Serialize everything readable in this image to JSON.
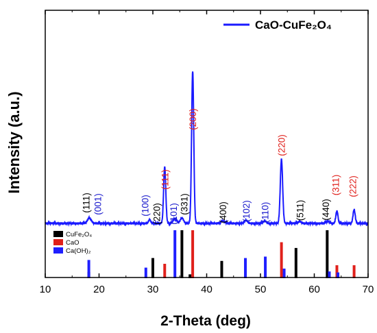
{
  "chart_data": {
    "type": "line",
    "xlabel": "2-Theta (deg)",
    "ylabel": "Intensity (a.u.)",
    "xlim": [
      10,
      70
    ],
    "xticks": [
      10,
      20,
      30,
      40,
      50,
      60,
      70
    ],
    "xtick_labels": [
      "10",
      "20",
      "30",
      "40",
      "50",
      "60",
      "70"
    ],
    "yticks_shown": false,
    "grid": false,
    "series": [
      {
        "name": "CaO-CuFe₂O₄",
        "color": "#1a1aff",
        "baseline_rel": 0.02,
        "peaks": [
          {
            "x": 18.2,
            "h": 0.035,
            "w": 0.35
          },
          {
            "x": 29.4,
            "h": 0.025,
            "w": 0.2
          },
          {
            "x": 32.2,
            "h": 0.37,
            "w": 0.2
          },
          {
            "x": 34.1,
            "h": 0.03,
            "w": 0.35
          },
          {
            "x": 35.4,
            "h": 0.035,
            "w": 0.3
          },
          {
            "x": 37.4,
            "h": 1.0,
            "w": 0.2
          },
          {
            "x": 43.0,
            "h": 0.015,
            "w": 0.4
          },
          {
            "x": 47.3,
            "h": 0.02,
            "w": 0.3
          },
          {
            "x": 50.8,
            "h": 0.015,
            "w": 0.3
          },
          {
            "x": 53.9,
            "h": 0.42,
            "w": 0.22
          },
          {
            "x": 57.3,
            "h": 0.012,
            "w": 0.3
          },
          {
            "x": 62.5,
            "h": 0.015,
            "w": 0.3
          },
          {
            "x": 64.2,
            "h": 0.08,
            "w": 0.2
          },
          {
            "x": 67.4,
            "h": 0.09,
            "w": 0.2
          }
        ]
      }
    ],
    "reference_patterns": [
      {
        "name": "CuFe₂O₄",
        "color": "#000000",
        "lines": [
          {
            "x": 18.1,
            "rel": 0.13
          },
          {
            "x": 30.0,
            "rel": 0.42
          },
          {
            "x": 35.4,
            "rel": 1.0
          },
          {
            "x": 36.9,
            "rel": 0.08
          },
          {
            "x": 42.8,
            "rel": 0.36
          },
          {
            "x": 56.6,
            "rel": 0.63
          },
          {
            "x": 62.4,
            "rel": 1.0
          }
        ]
      },
      {
        "name": "CaO",
        "color": "#e0201b",
        "lines": [
          {
            "x": 32.2,
            "rel": 0.3
          },
          {
            "x": 37.4,
            "rel": 1.0
          },
          {
            "x": 53.9,
            "rel": 0.75
          },
          {
            "x": 64.2,
            "rel": 0.27
          },
          {
            "x": 67.4,
            "rel": 0.27
          }
        ]
      },
      {
        "name": "Ca(OH)₂",
        "color": "#1f1fff",
        "lines": [
          {
            "x": 18.1,
            "rel": 0.38
          },
          {
            "x": 28.7,
            "rel": 0.22
          },
          {
            "x": 34.1,
            "rel": 1.0
          },
          {
            "x": 47.2,
            "rel": 0.42
          },
          {
            "x": 50.9,
            "rel": 0.45
          },
          {
            "x": 54.4,
            "rel": 0.2
          },
          {
            "x": 62.8,
            "rel": 0.14
          },
          {
            "x": 64.4,
            "rel": 0.12
          }
        ]
      }
    ],
    "peak_labels": [
      {
        "text": "(111)",
        "x": 18.2,
        "color": "#000000",
        "row": 0
      },
      {
        "text": "(001)",
        "x": 18.2,
        "color": "#1a1acc",
        "row": 1
      },
      {
        "text": "(100)",
        "x": 29.4,
        "color": "#1a1acc",
        "row": 0
      },
      {
        "text": "(220)",
        "x": 29.4,
        "color": "#000000",
        "row": 1
      },
      {
        "text": "(111)",
        "x": 32.2,
        "color": "#e0201b",
        "row": 2
      },
      {
        "text": "(101)",
        "x": 34.1,
        "color": "#1a1acc",
        "row": 0
      },
      {
        "text": "(331)",
        "x": 35.4,
        "color": "#000000",
        "row": 3
      },
      {
        "text": "(200)",
        "x": 37.4,
        "color": "#e0201b",
        "row": 4
      },
      {
        "text": "(400)",
        "x": 43.0,
        "color": "#000000",
        "row": 0
      },
      {
        "text": "(102)",
        "x": 47.3,
        "color": "#1a1acc",
        "row": 0
      },
      {
        "text": "(110)",
        "x": 50.8,
        "color": "#1a1acc",
        "row": 0
      },
      {
        "text": "(220)",
        "x": 53.9,
        "color": "#e0201b",
        "row": 5
      },
      {
        "text": "(511)",
        "x": 57.3,
        "color": "#000000",
        "row": 0
      },
      {
        "text": "(440)",
        "x": 62.5,
        "color": "#000000",
        "row": 0
      },
      {
        "text": "(311)",
        "x": 64.2,
        "color": "#e0201b",
        "row": 6
      },
      {
        "text": "(222)",
        "x": 67.4,
        "color": "#e0201b",
        "row": 6
      }
    ],
    "legend_placement": "top-right"
  }
}
